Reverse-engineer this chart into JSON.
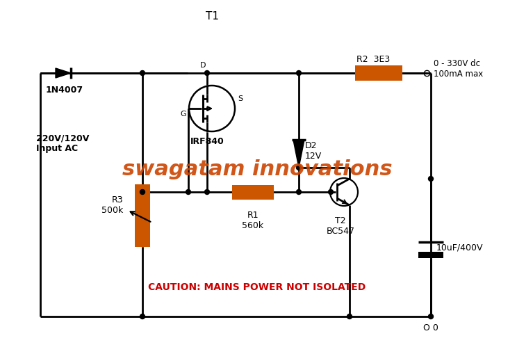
{
  "title": "T1",
  "bg_color": "#ffffff",
  "line_color": "#000000",
  "resistor_color": "#cc5500",
  "watermark": "swagatam innovations",
  "watermark_color": "#cc4400",
  "caution_text": "CAUTION: MAINS POWER NOT ISOLATED",
  "caution_color": "#cc0000",
  "label_1n4007": "1N4007",
  "label_irf840": "IRF840",
  "label_r2": "R2  3E3",
  "label_d2": "D2\n12V",
  "label_r3": "R3\n500k",
  "label_r1": "R1\n560k",
  "label_t2": "T2\nBC547",
  "label_output": "0 - 330V dc\n100mA max",
  "label_cap": "10uF/400V",
  "label_input": "220V/120V\nInput AC",
  "label_00": "O 0"
}
